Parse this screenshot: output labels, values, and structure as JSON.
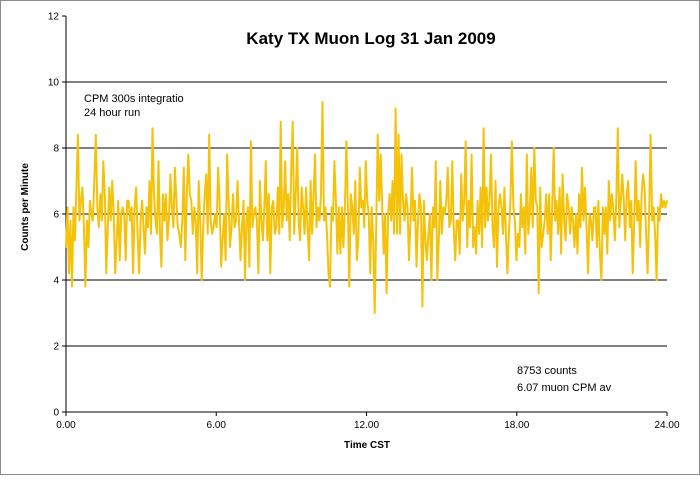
{
  "chart_data": {
    "type": "line",
    "title": "Katy TX Muon Log   31 Jan 2009",
    "xlabel": "Time CST",
    "ylabel": "Counts per Minute",
    "xlim": [
      0,
      24
    ],
    "ylim": [
      0,
      12
    ],
    "x_ticks": [
      0,
      6,
      12,
      18,
      24
    ],
    "x_tick_labels": [
      "0.00",
      "6.00",
      "12.00",
      "18.00",
      "24.00"
    ],
    "y_ticks": [
      0,
      2,
      4,
      6,
      8,
      10,
      12
    ],
    "y_tick_labels": [
      "0",
      "2",
      "4",
      "6",
      "8",
      "10",
      "12"
    ],
    "grid": "horizontal major lines at 2, 4, 6, 8, 10",
    "series_color": "#F5C20A",
    "annotations": {
      "top_left": [
        "CPM  300s integratio",
        "24 hour run"
      ],
      "bottom_right": [
        "8753 counts",
        "6.07 muon CPM av"
      ]
    },
    "series": [
      {
        "x_start": 0.0,
        "x_step": 0.0833,
        "values": [
          5.0,
          6.2,
          4.2,
          5.8,
          3.8,
          6.2,
          5.2,
          6.8,
          8.4,
          5.8,
          6.4,
          6.8,
          5.6,
          3.8,
          5.8,
          5.0,
          6.4,
          6.0,
          5.8,
          7.0,
          8.4,
          6.2,
          5.6,
          6.6,
          5.8,
          7.6,
          6.6,
          4.2,
          5.6,
          6.8,
          5.8,
          7.0,
          6.0,
          4.2,
          5.2,
          6.4,
          4.6,
          6.0,
          6.2,
          6.0,
          4.6,
          6.4,
          6.4,
          5.8,
          6.2,
          4.2,
          6.2,
          6.8,
          5.4,
          4.2,
          5.8,
          6.4,
          5.6,
          4.8,
          6.2,
          5.6,
          7.0,
          5.4,
          8.6,
          6.6,
          5.8,
          5.4,
          7.6,
          5.4,
          4.4,
          6.6,
          5.8,
          6.6,
          5.2,
          5.8,
          7.2,
          6.2,
          5.6,
          7.4,
          6.4,
          5.6,
          5.4,
          5.0,
          5.8,
          7.4,
          4.6,
          6.6,
          7.8,
          6.6,
          6.4,
          5.4,
          6.2,
          5.8,
          4.2,
          7.0,
          5.8,
          4.0,
          5.6,
          6.6,
          7.2,
          5.4,
          8.4,
          5.8,
          5.4,
          5.6,
          6.0,
          5.6,
          7.4,
          6.4,
          4.4,
          5.2,
          6.0,
          4.6,
          7.8,
          6.4,
          5.0,
          5.6,
          6.6,
          5.6,
          5.8,
          7.0,
          5.8,
          4.6,
          5.6,
          6.4,
          4.0,
          5.8,
          6.2,
          4.4,
          8.2,
          5.6,
          6.0,
          6.2,
          5.8,
          4.2,
          7.0,
          5.8,
          5.2,
          6.2,
          7.6,
          5.2,
          6.6,
          4.2,
          6.2,
          6.4,
          5.4,
          5.6,
          6.8,
          5.4,
          8.8,
          5.6,
          6.2,
          7.6,
          5.8,
          6.6,
          5.2,
          7.4,
          8.8,
          5.4,
          6.6,
          8.0,
          5.8,
          5.2,
          6.8,
          6.2,
          5.4,
          6.8,
          5.6,
          4.6,
          7.0,
          5.4,
          6.6,
          7.8,
          5.6,
          6.2,
          5.8,
          6.6,
          9.4,
          5.8,
          6.2,
          5.4,
          4.2,
          3.8,
          6.2,
          5.8,
          7.6,
          6.4,
          4.8,
          6.2,
          4.8,
          6.2,
          5.0,
          6.2,
          8.2,
          6.2,
          3.8,
          6.6,
          6.2,
          5.4,
          7.0,
          4.6,
          5.2,
          7.4,
          6.2,
          6.4,
          5.6,
          7.6,
          6.4,
          6.0,
          4.2,
          6.2,
          5.2,
          3.0,
          5.6,
          8.4,
          6.4,
          7.8,
          6.2,
          4.8,
          6.0,
          3.6,
          6.0,
          6.6,
          5.8,
          7.0,
          5.4,
          9.2,
          5.4,
          8.4,
          5.4,
          7.8,
          6.4,
          5.8,
          6.6,
          6.2,
          4.6,
          5.8,
          7.4,
          5.8,
          6.4,
          4.4,
          5.8,
          6.6,
          6.2,
          3.2,
          6.4,
          5.2,
          4.6,
          5.4,
          6.0,
          4.0,
          6.2,
          5.6,
          7.6,
          4.0,
          5.2,
          7.0,
          5.4,
          6.2,
          6.0,
          6.4,
          7.4,
          5.6,
          5.8,
          7.6,
          5.6,
          4.6,
          5.8,
          5.8,
          4.8,
          7.2,
          5.8,
          6.4,
          8.2,
          5.0,
          6.4,
          5.6,
          7.8,
          5.0,
          5.6,
          4.8,
          6.4,
          5.4,
          6.8,
          5.0,
          8.6,
          5.6,
          6.8,
          5.8,
          6.4,
          7.8,
          5.6,
          5.0,
          7.0,
          4.4,
          6.2,
          6.6,
          6.2,
          5.4,
          6.8,
          5.4,
          4.2,
          5.4,
          6.4,
          8.2,
          6.2,
          5.8,
          4.6,
          5.4,
          5.0,
          6.6,
          5.6,
          6.2,
          4.8,
          7.8,
          5.4,
          6.0,
          7.4,
          5.6,
          8.0,
          6.4,
          6.2,
          3.6,
          6.8,
          5.0,
          5.4,
          5.8,
          6.6,
          5.4,
          6.6,
          4.6,
          6.2,
          8.0,
          5.8,
          6.4,
          5.4,
          6.8,
          4.8,
          7.2,
          5.8,
          5.2,
          6.6,
          6.2,
          5.4,
          6.2,
          5.8,
          5.0,
          6.0,
          4.8,
          6.6,
          5.6,
          7.4,
          5.8,
          6.8,
          5.6,
          4.2,
          6.0,
          5.8,
          5.2,
          6.2,
          6.2,
          5.0,
          6.4,
          4.8,
          4.0,
          6.2,
          5.4,
          6.2,
          4.8,
          7.0,
          5.8,
          6.6,
          6.2,
          5.2,
          6.4,
          8.6,
          5.6,
          6.4,
          7.2,
          6.4,
          5.2,
          6.6,
          7.0,
          5.6,
          6.4,
          4.2,
          5.8,
          7.6,
          5.8,
          6.4,
          5.0,
          6.6,
          7.2,
          6.8,
          5.4,
          4.2,
          6.0,
          8.4,
          5.8,
          6.2,
          5.4,
          4.0,
          6.2,
          5.8,
          6.6,
          6.2,
          6.4,
          6.2,
          6.4
        ]
      }
    ]
  }
}
